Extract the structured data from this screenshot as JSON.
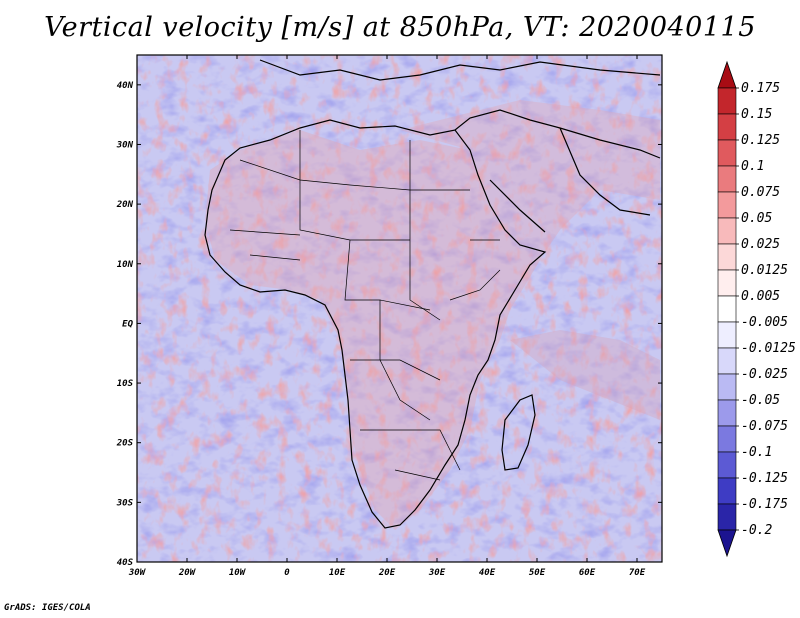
{
  "title": "Vertical velocity [m/s] at 850hPa, VT: 2020040115",
  "credit": "GrADS: IGES/COLA",
  "map": {
    "lon_range": [
      -30,
      75
    ],
    "lat_range": [
      -40,
      45
    ],
    "lon_ticks": [
      -30,
      -20,
      -10,
      0,
      10,
      20,
      30,
      40,
      50,
      60,
      70
    ],
    "lon_tick_labels": [
      "30W",
      "20W",
      "10W",
      "0",
      "10E",
      "20E",
      "30E",
      "40E",
      "50E",
      "60E",
      "70E"
    ],
    "lat_ticks": [
      40,
      30,
      20,
      10,
      0,
      -10,
      -20,
      -30,
      -40
    ],
    "lat_tick_labels": [
      "40N",
      "30N",
      "20N",
      "10N",
      "EQ",
      "10S",
      "20S",
      "30S",
      "40S"
    ],
    "field": "vertical velocity",
    "units": "m/s",
    "level": "850hPa",
    "valid_time": "2020040115"
  },
  "colorbar": {
    "labels": [
      "0.175",
      "0.15",
      "0.125",
      "0.1",
      "0.075",
      "0.05",
      "0.025",
      "0.0125",
      "0.005",
      "-0.005",
      "-0.0125",
      "-0.025",
      "-0.05",
      "-0.075",
      "-0.1",
      "-0.125",
      "-0.175",
      "-0.2"
    ],
    "colors": [
      "#a80c14",
      "#c3262c",
      "#d43f44",
      "#e05a5e",
      "#ea7b7e",
      "#f39a9c",
      "#f8babb",
      "#fcd8d8",
      "#ffeeee",
      "#ffffff",
      "#eeeeff",
      "#d8d8fa",
      "#babaf3",
      "#9c9aeb",
      "#7b79e0",
      "#5c5ad4",
      "#3e3cc4",
      "#2a25a8",
      "#1c1490"
    ]
  }
}
